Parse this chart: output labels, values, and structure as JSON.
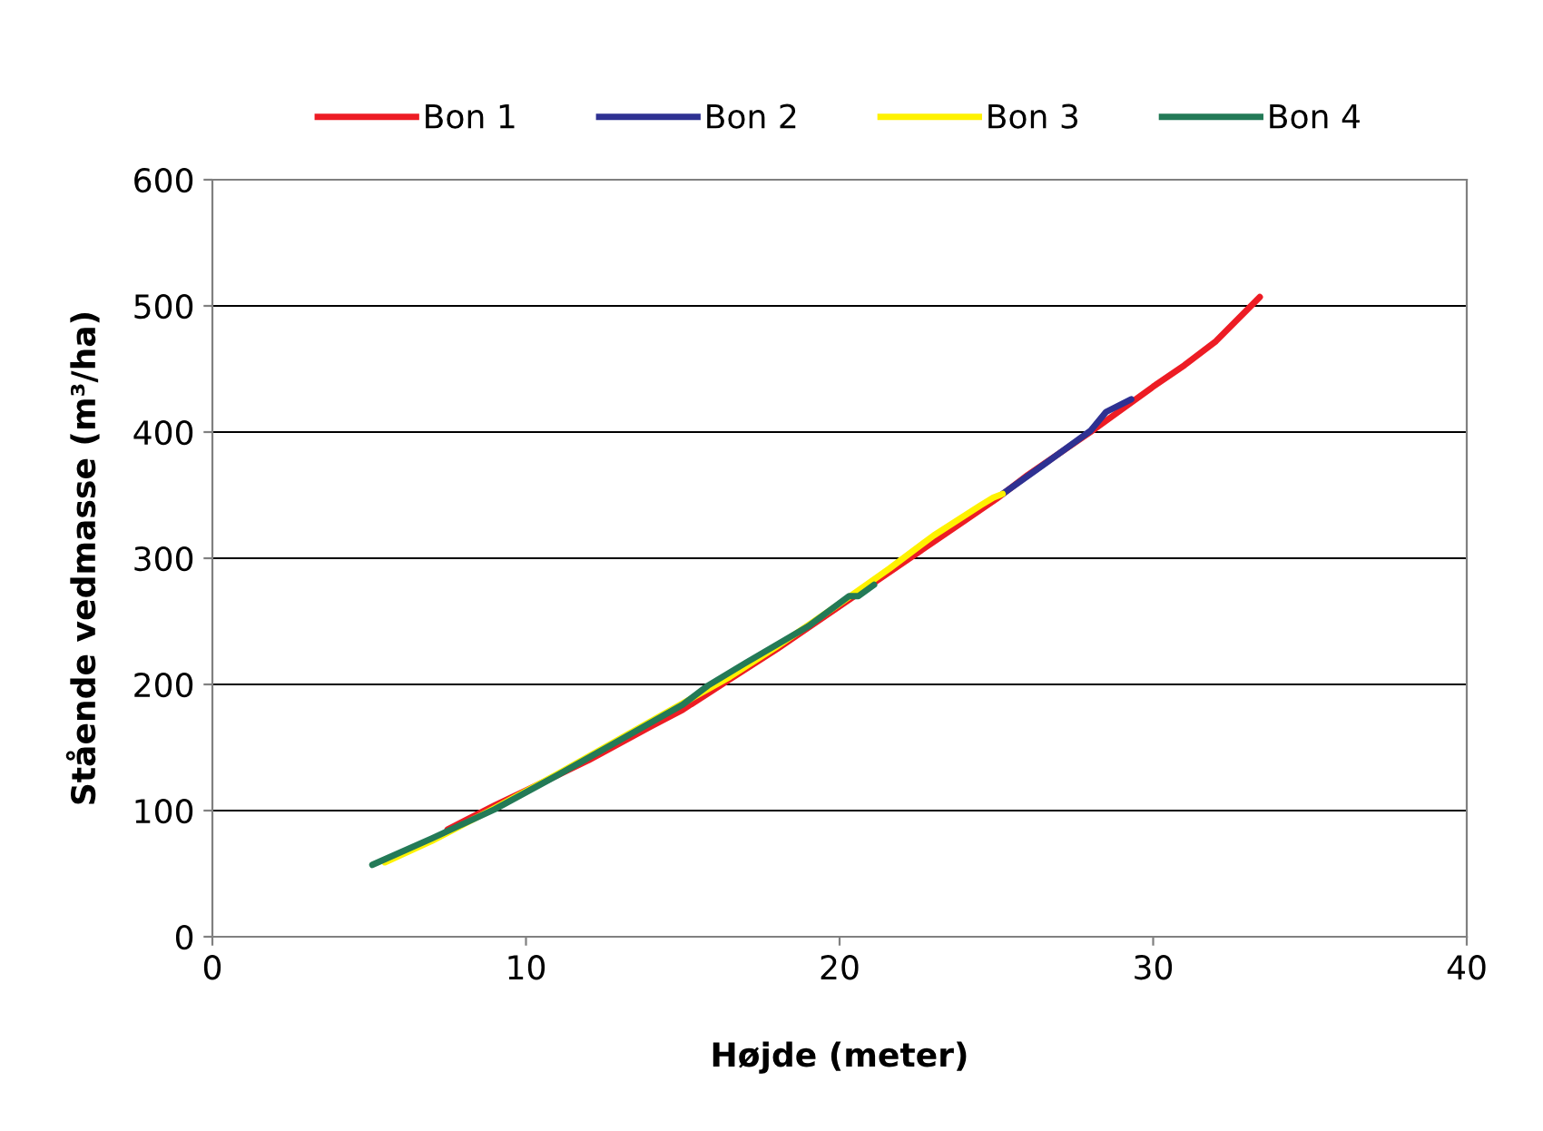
{
  "chart_data": {
    "type": "line",
    "xlabel": "Højde (meter)",
    "ylabel": "Stående vedmasse (m³/ha)",
    "xlim": [
      0,
      40
    ],
    "xticks": [
      0,
      10,
      20,
      30,
      40
    ],
    "ylim": [
      0,
      600
    ],
    "yticks": [
      0,
      100,
      200,
      300,
      400,
      500,
      600
    ],
    "grid": "y",
    "legend": "top",
    "marker": "none",
    "line_style": "solid",
    "series": [
      {
        "name": "Bon 1",
        "color": "#ed1c24",
        "x": [
          7.5,
          9,
          10,
          12,
          14,
          15,
          16.5,
          18,
          20,
          22,
          24,
          25,
          26,
          28,
          29,
          30,
          31,
          32,
          33.4
        ],
        "values": [
          85,
          104,
          116,
          140,
          167,
          180,
          204,
          228,
          262,
          296,
          330,
          347,
          366,
          400,
          418,
          436,
          453,
          472,
          507
        ]
      },
      {
        "name": "Bon 2",
        "color": "#2e3192",
        "x": [
          25.2,
          26.5,
          28,
          28.5,
          29.3
        ],
        "values": [
          351,
          374,
          401,
          416,
          426
        ]
      },
      {
        "name": "Bon 3",
        "color": "#fff200",
        "x": [
          5.5,
          7,
          9,
          11,
          13,
          15,
          16.5,
          18,
          20,
          21.6,
          23,
          24.5,
          24.9,
          25.2
        ],
        "values": [
          59,
          76,
          102,
          129,
          157,
          185,
          206,
          230,
          264,
          292,
          318,
          342,
          348,
          351
        ]
      },
      {
        "name": "Bon 4",
        "color": "#237a57",
        "x": [
          5.1,
          7,
          9,
          11,
          13,
          15,
          15.8,
          17,
          19,
          20.3,
          20.6,
          21.1
        ],
        "values": [
          57,
          78,
          101,
          128,
          156,
          184,
          199,
          217,
          246,
          270,
          270,
          279
        ]
      }
    ]
  }
}
